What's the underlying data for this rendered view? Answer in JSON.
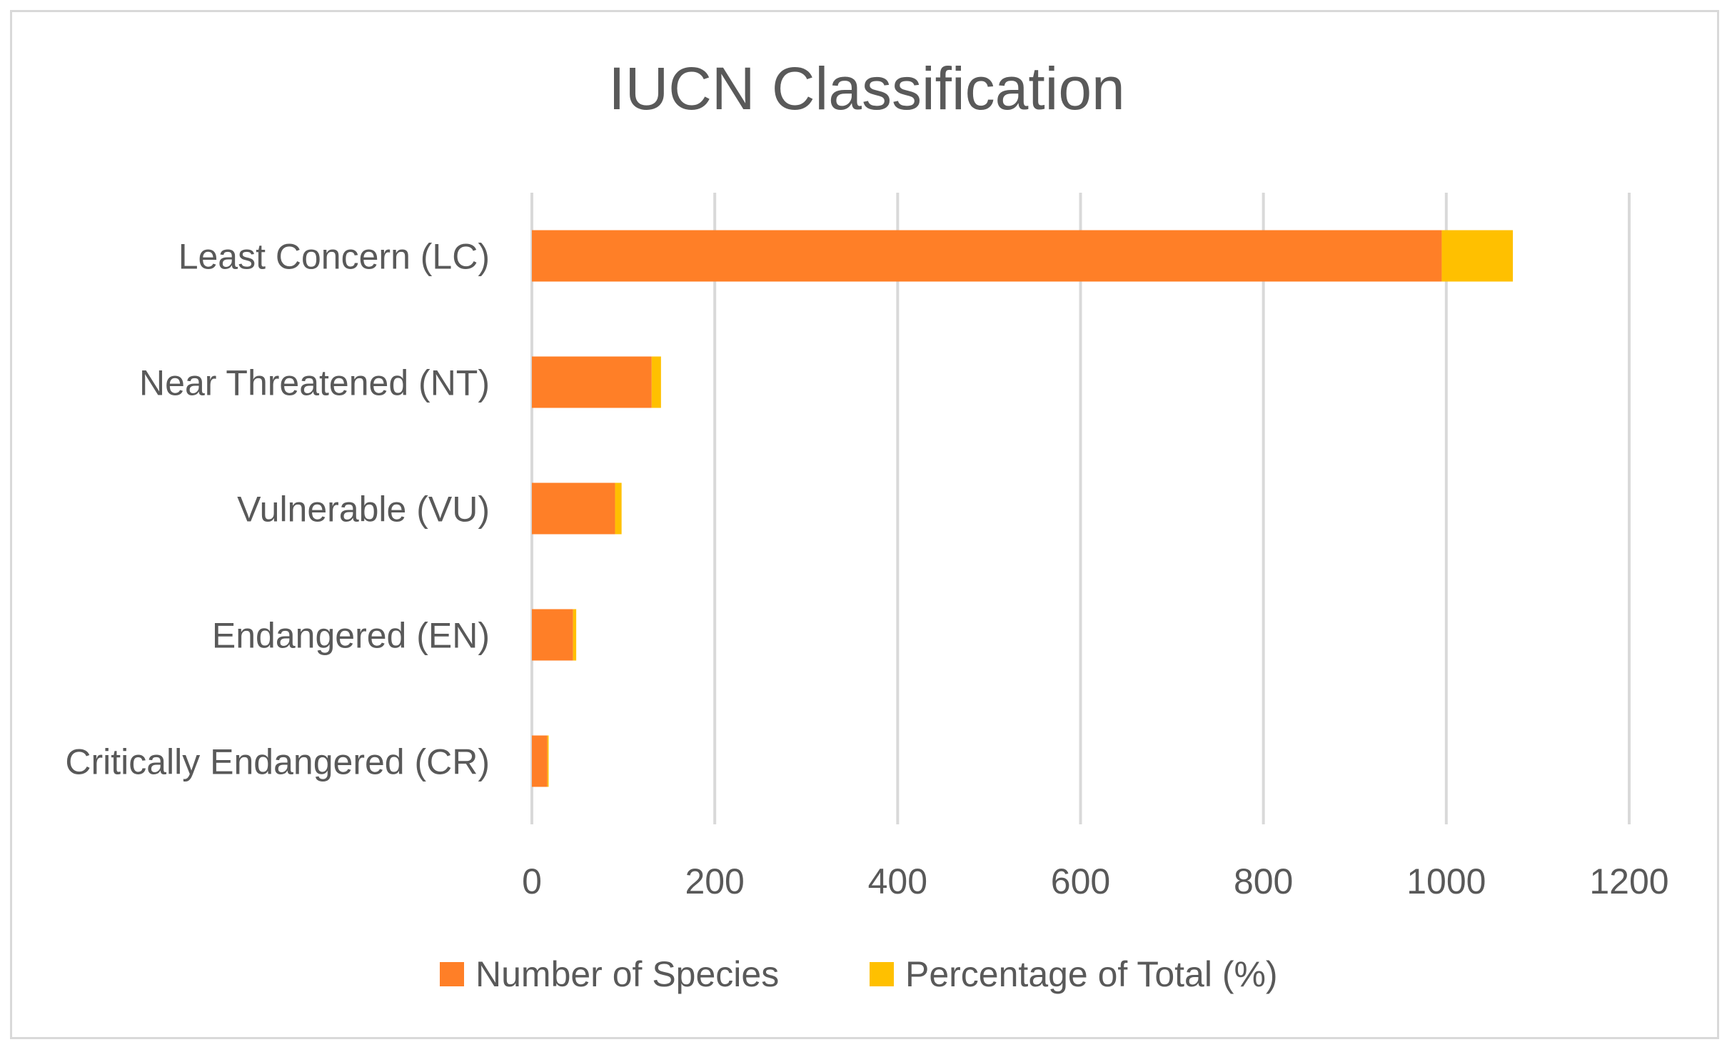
{
  "chart_data": {
    "type": "bar",
    "orientation": "horizontal",
    "stacked": true,
    "title": "IUCN Classification",
    "categories": [
      "Least Concern (LC)",
      "Near Threatened (NT)",
      "Vulnerable (VU)",
      "Endangered (EN)",
      "Critically Endangered (CR)"
    ],
    "series": [
      {
        "name": "Number of Species",
        "color": "#FF7F27",
        "values": [
          995,
          131,
          91,
          45,
          17
        ]
      },
      {
        "name": "Percentage of Total (%)",
        "color": "#FFC000",
        "values": [
          77.8,
          10.2,
          7.1,
          3.5,
          1.3
        ]
      }
    ],
    "xlim": [
      0,
      1200
    ],
    "xticks": [
      0,
      200,
      400,
      600,
      800,
      1000,
      1200
    ],
    "grid": true,
    "legend_position": "bottom"
  }
}
